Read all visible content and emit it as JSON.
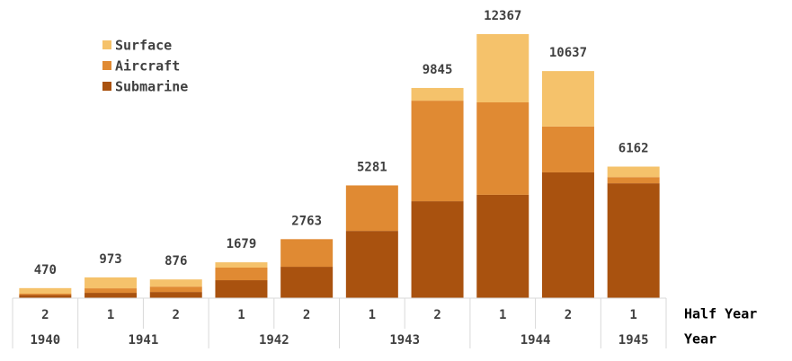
{
  "chart_data": {
    "type": "stacked-bar",
    "categories": [
      "2",
      "1",
      "2",
      "1",
      "2",
      "1",
      "2",
      "1",
      "2",
      "1"
    ],
    "groups": [
      {
        "label": "1940",
        "span": 1
      },
      {
        "label": "1941",
        "span": 2
      },
      {
        "label": "1942",
        "span": 2
      },
      {
        "label": "1943",
        "span": 2
      },
      {
        "label": "1944",
        "span": 2
      },
      {
        "label": "1945",
        "span": 1
      }
    ],
    "x_label": "Half Year",
    "group_label": "Year",
    "series": [
      {
        "name": "Submarine",
        "color": "#a9520f",
        "values": [
          150,
          250,
          290,
          840,
          1470,
          3150,
          4540,
          4840,
          5890,
          5380
        ]
      },
      {
        "name": "Aircraft",
        "color": "#e08a33",
        "values": [
          60,
          210,
          250,
          590,
          1293,
          2131,
          4710,
          4330,
          2150,
          290
        ]
      },
      {
        "name": "Surface",
        "color": "#f5c26b",
        "values": [
          260,
          513,
          336,
          249,
          0,
          0,
          595,
          3197,
          2597,
          492
        ]
      }
    ],
    "totals": [
      470,
      973,
      876,
      1679,
      2763,
      5281,
      9845,
      12367,
      10637,
      6162
    ]
  }
}
